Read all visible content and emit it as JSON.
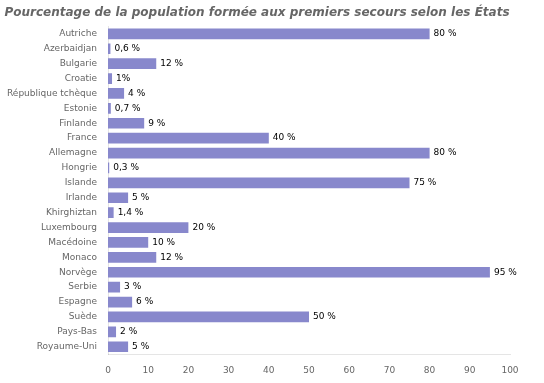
{
  "chart_data": {
    "type": "bar",
    "orientation": "horizontal",
    "title": "Pourcentage de la population formée aux premiers secours selon les États",
    "categories": [
      "Autriche",
      "Azerbaidjan",
      "Bulgarie",
      "Croatie",
      "République tchèque",
      "Estonie",
      "Finlande",
      "France",
      "Allemagne",
      "Hongrie",
      "Islande",
      "Irlande",
      "Khirghiztan",
      "Luxembourg",
      "Macédoine",
      "Monaco",
      "Norvège",
      "Serbie",
      "Espagne",
      "Suède",
      "Pays-Bas",
      "Royaume-Uni"
    ],
    "values": [
      80,
      0.6,
      12,
      1,
      4,
      0.7,
      9,
      40,
      80,
      0.3,
      75,
      5,
      1.4,
      20,
      10,
      12,
      95,
      3,
      6,
      50,
      2,
      5
    ],
    "value_labels": [
      "80 %",
      "0,6 %",
      "12 %",
      "1%",
      "4 %",
      "0,7 %",
      "9 %",
      "40 %",
      "80 %",
      "0,3 %",
      "75 %",
      "5 %",
      "1,4 %",
      "20 %",
      "10 %",
      "12 %",
      "95 %",
      "3 %",
      "6 %",
      "50 %",
      "2 %",
      "5 %"
    ],
    "color": "#8888cc",
    "xlim": [
      0,
      100
    ],
    "xticks": [
      0,
      10,
      20,
      30,
      40,
      50,
      60,
      70,
      80,
      90,
      100
    ],
    "data_labels": true,
    "grid": false
  }
}
